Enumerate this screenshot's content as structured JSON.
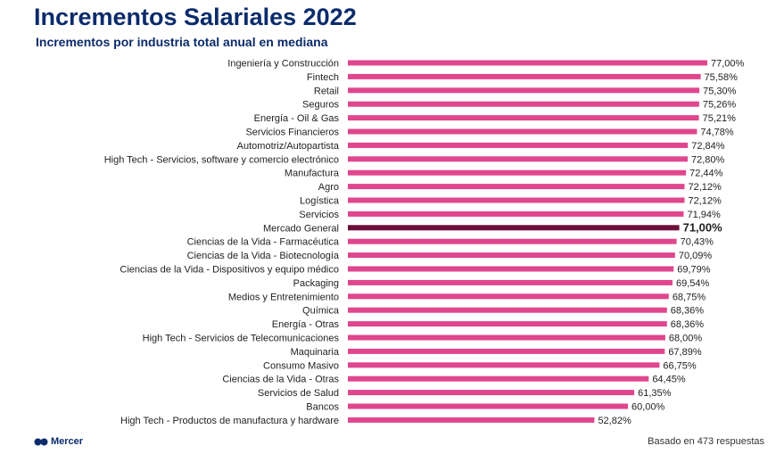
{
  "header": {
    "title": "Incrementos Salariales 2022",
    "subtitle": "Incrementos por industria total anual en mediana"
  },
  "footer": {
    "brand": "Mercer",
    "note": "Basado en 473 respuestas"
  },
  "colors": {
    "bar": "#e0468e",
    "highlight_bar": "#6b0f3a",
    "title": "#0b2b6b"
  },
  "chart_data": {
    "type": "bar",
    "orientation": "horizontal",
    "xlim": [
      0,
      77
    ],
    "categories": [
      "Ingeniería y Construcción",
      "Fintech",
      "Retail",
      "Seguros",
      "Energía - Oil & Gas",
      "Servicios Financieros",
      "Automotriz/Autopartista",
      "High Tech - Servicios, software y comercio electrónico",
      "Manufactura",
      "Agro",
      "Logística",
      "Servicios",
      "Mercado General",
      "Ciencias de la Vida - Farmacéutica",
      "Ciencias de la Vida - Biotecnología",
      "Ciencias de la Vida - Dispositivos y equipo médico",
      "Packaging",
      "Medios y Entretenimiento",
      "Química",
      "Energía - Otras",
      "High Tech - Servicios de Telecomunicaciones",
      "Maquinaria",
      "Consumo Masivo",
      "Ciencias de la Vida - Otras",
      "Servicios de Salud",
      "Bancos",
      "High Tech - Productos de manufactura y hardware"
    ],
    "values": [
      77.0,
      75.58,
      75.3,
      75.26,
      75.21,
      74.78,
      72.84,
      72.8,
      72.44,
      72.12,
      72.12,
      71.94,
      71.0,
      70.43,
      70.09,
      69.79,
      69.54,
      68.75,
      68.36,
      68.36,
      68.0,
      67.89,
      66.75,
      64.45,
      61.35,
      60.0,
      52.82
    ],
    "labels": [
      "77,00%",
      "75,58%",
      "75,30%",
      "75,26%",
      "75,21%",
      "74,78%",
      "72,84%",
      "72,80%",
      "72,44%",
      "72,12%",
      "72,12%",
      "71,94%",
      "71,00%",
      "70,43%",
      "70,09%",
      "69,79%",
      "69,54%",
      "68,75%",
      "68,36%",
      "68,36%",
      "68,00%",
      "67,89%",
      "66,75%",
      "64,45%",
      "61,35%",
      "60,00%",
      "52,82%"
    ],
    "highlight": "Mercado General",
    "grid": false,
    "legend": "none"
  }
}
